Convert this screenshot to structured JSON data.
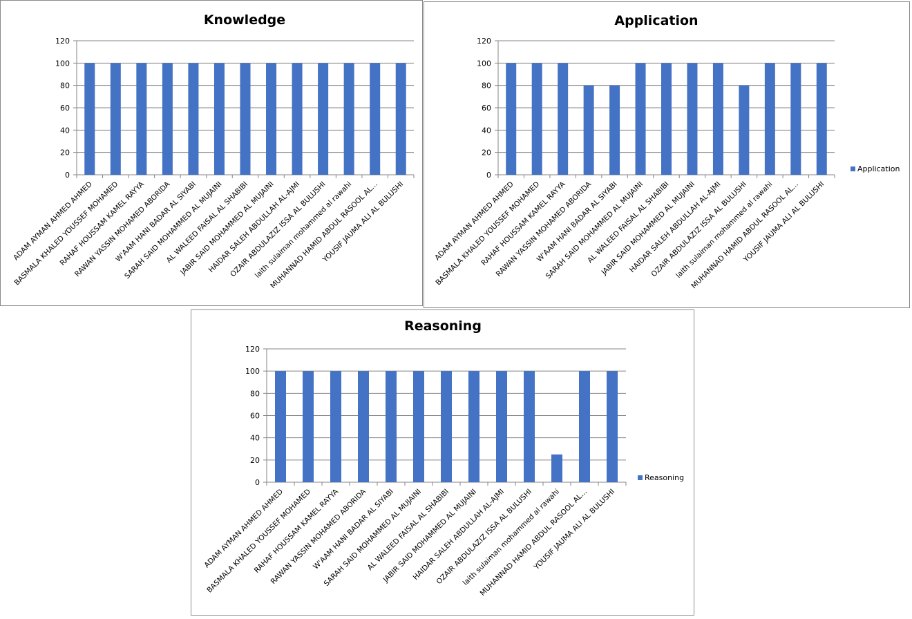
{
  "chart_data": [
    {
      "type": "bar",
      "title": "Knowledge",
      "categories": [
        "ADAM AYMAN AHMED AHMED",
        "BASMALA KHALED YOUSSEF  MOHAMED",
        "RAHAF HOUSSAM KAMEL RAYYA",
        "RAWAN YASSIN MOHAMED ABORIDA",
        "W'AAM HANI BADAR AL SIYABI",
        "SARAH SAID MOHAMMED AL MUJAINI",
        "AL WALEED FAISAL AL SHABIBI",
        "JABIR SAID MOHAMMED AL MUJAINI",
        "HAIDAR SALEH ABDULLAH AL-AJMI",
        "OZAIR ABDULAZIZ ISSA AL BULUSHI",
        "laith sulaiman  mohammed  al rawahi",
        "MUHANNAD HAMID ABDUL RASOOL AL...",
        "YOUSIF JAUMA ALI AL BULUSHI"
      ],
      "values": [
        100,
        100,
        100,
        100,
        100,
        100,
        100,
        100,
        100,
        100,
        100,
        100,
        100
      ],
      "yticks": [
        0,
        20,
        40,
        60,
        80,
        100,
        120
      ],
      "ylim": [
        0,
        120
      ],
      "legend": null,
      "color": "#4472C4"
    },
    {
      "type": "bar",
      "title": "Application",
      "categories": [
        "ADAM AYMAN AHMED AHMED",
        "BASMALA KHALED YOUSSEF  MOHAMED",
        "RAHAF HOUSSAM KAMEL RAYYA",
        "RAWAN YASSIN MOHAMED ABORIDA",
        "W'AAM HANI BADAR AL SIYABI",
        "SARAH SAID MOHAMMED AL MUJAINI",
        "AL WALEED FAISAL AL SHABIBI",
        "JABIR SAID MOHAMMED AL MUJAINI",
        "HAIDAR SALEH ABDULLAH AL-AJMI",
        "OZAIR ABDULAZIZ ISSA AL BULUSHI",
        "laith sulaiman  mohammed  al rawahi",
        "MUHANNAD HAMID ABDUL RASOOL AL...",
        "YOUSIF JAUMA ALI AL BULUSHI"
      ],
      "values": [
        100,
        100,
        100,
        80,
        80,
        100,
        100,
        100,
        100,
        80,
        100,
        100,
        100
      ],
      "yticks": [
        0,
        20,
        40,
        60,
        80,
        100,
        120
      ],
      "ylim": [
        0,
        120
      ],
      "legend": "Application",
      "legend_position": "right",
      "color": "#4472C4"
    },
    {
      "type": "bar",
      "title": "Reasoning",
      "categories": [
        "ADAM AYMAN AHMED AHMED",
        "BASMALA KHALED YOUSSEF  MOHAMED",
        "RAHAF HOUSSAM KAMEL RAYYA",
        "RAWAN YASSIN MOHAMED ABORIDA",
        "W'AAM HANI BADAR AL SIYABI",
        "SARAH SAID MOHAMMED AL MUJAINI",
        "AL WALEED FAISAL AL SHABIBI",
        "JABIR SAID MOHAMMED AL MUJAINI",
        "HAIDAR SALEH ABDULLAH AL-AJMI",
        "OZAIR ABDULAZIZ ISSA AL BULUSHI",
        "laith sulaiman  mohammed  al rawahi",
        "MUHANNAD HAMID ABDUL RASOOL AL...",
        "YOUSIF JAUMA ALI AL BULUSHI"
      ],
      "values": [
        100,
        100,
        100,
        100,
        100,
        100,
        100,
        100,
        100,
        100,
        25,
        100,
        100
      ],
      "yticks": [
        0,
        20,
        40,
        60,
        80,
        100,
        120
      ],
      "ylim": [
        0,
        120
      ],
      "legend": "Reasoning",
      "legend_position": "right",
      "color": "#4472C4"
    }
  ]
}
